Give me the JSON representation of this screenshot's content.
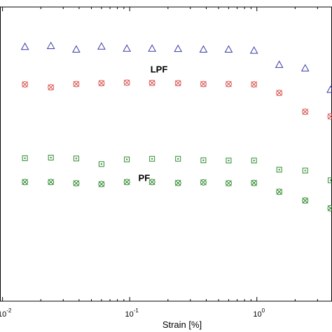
{
  "chart_data": {
    "type": "scatter",
    "title": "",
    "xlabel": "Strain [%]",
    "ylabel": "",
    "x_scale": "log",
    "xlim": [
      0.01,
      4
    ],
    "grid": false,
    "x_ticks": [
      {
        "value": 0.01,
        "base": "10",
        "exp": "-2"
      },
      {
        "value": 0.1,
        "base": "10",
        "exp": "-1"
      },
      {
        "value": 1,
        "base": "10",
        "exp": "0"
      }
    ],
    "annotations": [
      {
        "text": "LPF",
        "x": 0.17,
        "series_near": "triangle"
      },
      {
        "text": "PF",
        "x": 0.13,
        "series_near": "square"
      }
    ],
    "series": [
      {
        "marker": "triangle",
        "color": "#3a3aa8",
        "points": [
          {
            "x": 0.015,
            "y": 0.865
          },
          {
            "x": 0.024,
            "y": 0.868
          },
          {
            "x": 0.038,
            "y": 0.856
          },
          {
            "x": 0.06,
            "y": 0.866
          },
          {
            "x": 0.095,
            "y": 0.859
          },
          {
            "x": 0.15,
            "y": 0.859
          },
          {
            "x": 0.24,
            "y": 0.858
          },
          {
            "x": 0.38,
            "y": 0.856
          },
          {
            "x": 0.6,
            "y": 0.856
          },
          {
            "x": 0.95,
            "y": 0.852
          },
          {
            "x": 1.5,
            "y": 0.804
          },
          {
            "x": 2.4,
            "y": 0.792
          },
          {
            "x": 3.8,
            "y": 0.719
          }
        ]
      },
      {
        "marker": "crossed-circle",
        "color": "#d9534f",
        "points": [
          {
            "x": 0.015,
            "y": 0.737
          },
          {
            "x": 0.024,
            "y": 0.727
          },
          {
            "x": 0.038,
            "y": 0.738
          },
          {
            "x": 0.06,
            "y": 0.741
          },
          {
            "x": 0.095,
            "y": 0.743
          },
          {
            "x": 0.15,
            "y": 0.742
          },
          {
            "x": 0.24,
            "y": 0.741
          },
          {
            "x": 0.38,
            "y": 0.738
          },
          {
            "x": 0.6,
            "y": 0.738
          },
          {
            "x": 0.95,
            "y": 0.737
          },
          {
            "x": 1.5,
            "y": 0.708
          },
          {
            "x": 2.4,
            "y": 0.644
          },
          {
            "x": 3.8,
            "y": 0.628
          }
        ]
      },
      {
        "marker": "square",
        "color": "#2e8b2e",
        "points": [
          {
            "x": 0.015,
            "y": 0.486
          },
          {
            "x": 0.024,
            "y": 0.488
          },
          {
            "x": 0.038,
            "y": 0.485
          },
          {
            "x": 0.06,
            "y": 0.466
          },
          {
            "x": 0.095,
            "y": 0.482
          },
          {
            "x": 0.15,
            "y": 0.484
          },
          {
            "x": 0.24,
            "y": 0.484
          },
          {
            "x": 0.38,
            "y": 0.479
          },
          {
            "x": 0.6,
            "y": 0.478
          },
          {
            "x": 0.95,
            "y": 0.478
          },
          {
            "x": 1.5,
            "y": 0.447
          },
          {
            "x": 2.4,
            "y": 0.444
          },
          {
            "x": 3.8,
            "y": 0.411
          }
        ]
      },
      {
        "marker": "crossed-circle",
        "color": "#2e8b2e",
        "points": [
          {
            "x": 0.015,
            "y": 0.405
          },
          {
            "x": 0.024,
            "y": 0.405
          },
          {
            "x": 0.038,
            "y": 0.401
          },
          {
            "x": 0.06,
            "y": 0.398
          },
          {
            "x": 0.095,
            "y": 0.405
          },
          {
            "x": 0.15,
            "y": 0.405
          },
          {
            "x": 0.24,
            "y": 0.402
          },
          {
            "x": 0.38,
            "y": 0.404
          },
          {
            "x": 0.6,
            "y": 0.401
          },
          {
            "x": 0.95,
            "y": 0.402
          },
          {
            "x": 1.5,
            "y": 0.372
          },
          {
            "x": 2.4,
            "y": 0.342
          },
          {
            "x": 3.8,
            "y": 0.316
          }
        ]
      }
    ]
  }
}
